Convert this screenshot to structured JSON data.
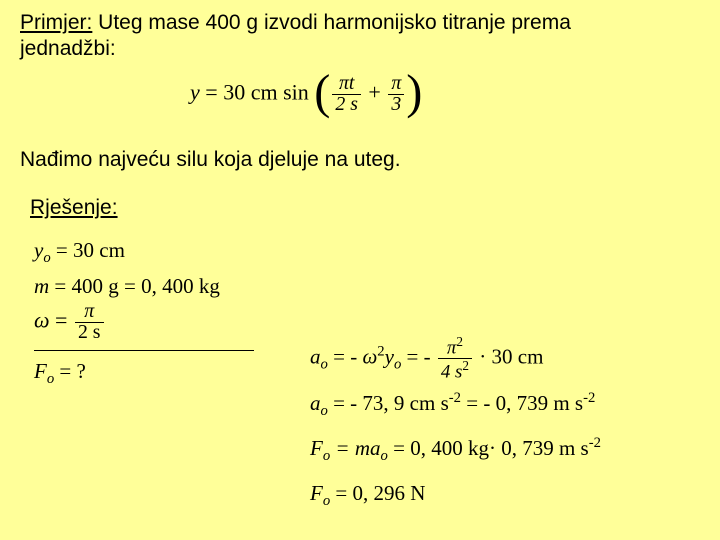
{
  "problem": {
    "label": "Primjer:",
    "text1": " Uteg mase 400 g izvodi harmonijsko titranje prema",
    "text2": "jednadžbi:"
  },
  "equation": {
    "lhs": "y",
    "rhs_pre": "30 cm sin",
    "frac1_num": "πt",
    "frac1_den": "2 s",
    "plus": "+",
    "frac2_num": "π",
    "frac2_den": "3"
  },
  "task": "Nađimo najveću silu koja djeluje na uteg.",
  "rjesenje": "Rješenje:",
  "given": {
    "y0": "y",
    "y0_sub": "o",
    "y0_val": " = 30 cm",
    "m": "m",
    "m_val1": " = 400 g",
    "m_val2": " = 0, 400 kg"
  },
  "omega": {
    "sym": "ω",
    "eq": "=",
    "num": "π",
    "den": "2 s"
  },
  "fo_q": {
    "F": "F",
    "sub": "o",
    "rest": " = ?"
  },
  "rows": {
    "r1_a": "a",
    "r1_eq1": " = ",
    "r1_neg": " - ",
    "r1_omega": "ω",
    "r1_y": "y",
    "r1_eq2": "= ",
    "r1_fnum": "π",
    "r1_fden": "4 s",
    "r1_tail": "· 30 cm",
    "r2": "a",
    "r2_rest_a": " = - 73, 9 cm s",
    "r2_rest_b": " = - 0, 739 m s",
    "r3_F": "F",
    "r3_mid": " = ma",
    "r3_tail": " = 0, 400 kg· 0, 739 m s",
    "r4_F": "F",
    "r4_rest": " = 0, 296 N"
  }
}
